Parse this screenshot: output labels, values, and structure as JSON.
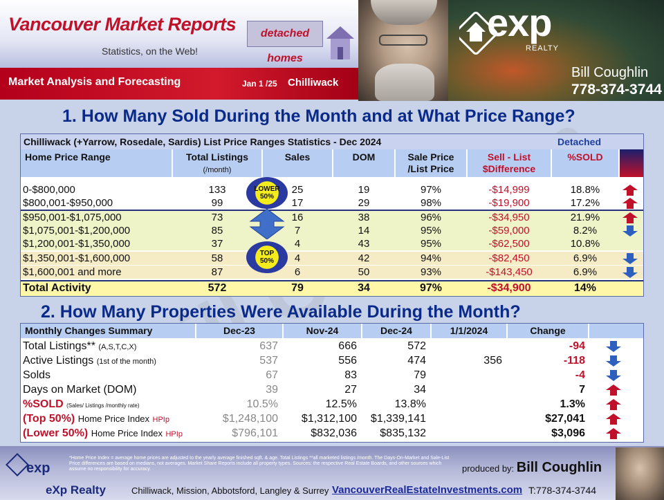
{
  "header": {
    "brand_title": "Vancouver Market Reports",
    "brand_subtitle": "Statistics, on the Web!",
    "property_type_badge": "detached homes",
    "band_left": "Market Analysis and Forecasting",
    "report_date": "Jan 1 /25",
    "city": "Chilliwack",
    "logo_text": "exp",
    "logo_sub": "REALTY",
    "agent_name": "Bill Coughlin",
    "agent_phone": "778-374-3744"
  },
  "section1": {
    "title": "1. How Many Sold During the Month and at What Price Range?",
    "caption": "Chilliwack (+Yarrow, Rosedale, Sardis) List Price Ranges Statistics - Dec 2024",
    "caption_right": "Detached",
    "headers": {
      "range": "Home Price Range",
      "listings": "Total  Listings",
      "listings_sub": "(/month)",
      "sales": "Sales",
      "dom": "DOM",
      "sale_list": "Sale Price",
      "sale_list_sub": "/List Price",
      "diff": "Sell - List",
      "diff_sub": "$Difference",
      "pct_sold": "%SOLD"
    },
    "badges": {
      "lower": "LOWER",
      "lower_pct": "50%",
      "top": "TOP",
      "top_pct": "50%"
    },
    "rows": [
      {
        "range": "0-$800,000",
        "listings": "133",
        "sales": "25",
        "dom": "19",
        "ratio": "97%",
        "diff": "-$14,999",
        "pct": "18.8%",
        "trend": "up"
      },
      {
        "range": "$800,001-$950,000",
        "listings": "99",
        "sales": "17",
        "dom": "29",
        "ratio": "98%",
        "diff": "-$19,900",
        "pct": "17.2%",
        "trend": "up"
      },
      {
        "range": "$950,001-$1,075,000",
        "listings": "73",
        "sales": "16",
        "dom": "38",
        "ratio": "96%",
        "diff": "-$34,950",
        "pct": "21.9%",
        "trend": "up"
      },
      {
        "range": "$1,075,001-$1,200,000",
        "listings": "85",
        "sales": "7",
        "dom": "14",
        "ratio": "95%",
        "diff": "-$59,000",
        "pct": "8.2%",
        "trend": "down"
      },
      {
        "range": "$1,200,001-$1,350,000",
        "listings": "37",
        "sales": "4",
        "dom": "43",
        "ratio": "95%",
        "diff": "-$62,500",
        "pct": "10.8%",
        "trend": "none"
      },
      {
        "range": "$1,350,001-$1,600,000",
        "listings": "58",
        "sales": "4",
        "dom": "42",
        "ratio": "94%",
        "diff": "-$82,450",
        "pct": "6.9%",
        "trend": "down"
      },
      {
        "range": "$1,600,001 and more",
        "listings": "87",
        "sales": "6",
        "dom": "50",
        "ratio": "93%",
        "diff": "-$143,450",
        "pct": "6.9%",
        "trend": "down"
      }
    ],
    "total": {
      "range": "Total Activity",
      "listings": "572",
      "sales": "79",
      "dom": "34",
      "ratio": "97%",
      "diff": "-$34,900",
      "pct": "14%"
    }
  },
  "section2": {
    "title": "2. How Many Properties Were Available During the Month?",
    "headers": {
      "label": "Monthly Changes Summary",
      "c1": "Dec-23",
      "c2": "Nov-24",
      "c3": "Dec-24",
      "c4": "1/1/2024",
      "c5": "Change"
    },
    "rows": [
      {
        "label": "Total Listings**",
        "note": "(A,S,T,C,X)",
        "c1": "637",
        "c2": "666",
        "c3": "572",
        "c4": "",
        "change": "-94",
        "trend": "down"
      },
      {
        "label": "Active Listings",
        "note": "(1st of the month)",
        "c1": "537",
        "c2": "556",
        "c3": "474",
        "c4": "356",
        "change": "-118",
        "trend": "down"
      },
      {
        "label": "Solds",
        "note": "",
        "c1": "67",
        "c2": "83",
        "c3": "79",
        "c4": "",
        "change": "-4",
        "trend": "down"
      },
      {
        "label": "Days on Market (DOM)",
        "note": "",
        "c1": "39",
        "c2": "27",
        "c3": "34",
        "c4": "",
        "change": "7",
        "trend": "up"
      },
      {
        "label": "%SOLD",
        "note": "(Sales/ Listings /monthly rate)",
        "c1": "10.5%",
        "c2": "12.5%",
        "c3": "13.8%",
        "c4": "",
        "change": "1.3%",
        "trend": "up"
      },
      {
        "label": "(Top 50%)",
        "note": "Home Price Index",
        "hpi": "HPIp",
        "c1": "$1,248,100",
        "c2": "$1,312,100",
        "c3": "$1,339,141",
        "c4": "",
        "change": "$27,041",
        "trend": "up"
      },
      {
        "label": "(Lower 50%)",
        "note": "Home Price Index",
        "hpi": "HPIp",
        "c1": "$796,101",
        "c2": "$832,036",
        "c3": "$835,132",
        "c4": "",
        "change": "$3,096",
        "trend": "up"
      }
    ]
  },
  "footer": {
    "disclaimer": "*Home Price Index = average home prices are adjusted to the yearly average finished sqft. & age.  Total Listings **all marketed listings /month. The Days-On-Market and Sale-List Price differences are based on medians, not averages. Market Share Reports include all property types. Sources:  the respective Real Estate Boards, and other sources which assume no responsibility for accuracy.",
    "produced_by": "produced by:",
    "producer": "Bill Coughlin",
    "brand": "eXp Realty",
    "areas": "Chilliwack, Mission, Abbotsford, Langley & Surrey",
    "url": "VancouverRealEstateInvestments.com",
    "tel": "T:778-374-3744"
  },
  "colors": {
    "up": "#c0112a",
    "down": "#2e5fbf",
    "title": "#0a2a8a",
    "band": "#c0112a"
  }
}
